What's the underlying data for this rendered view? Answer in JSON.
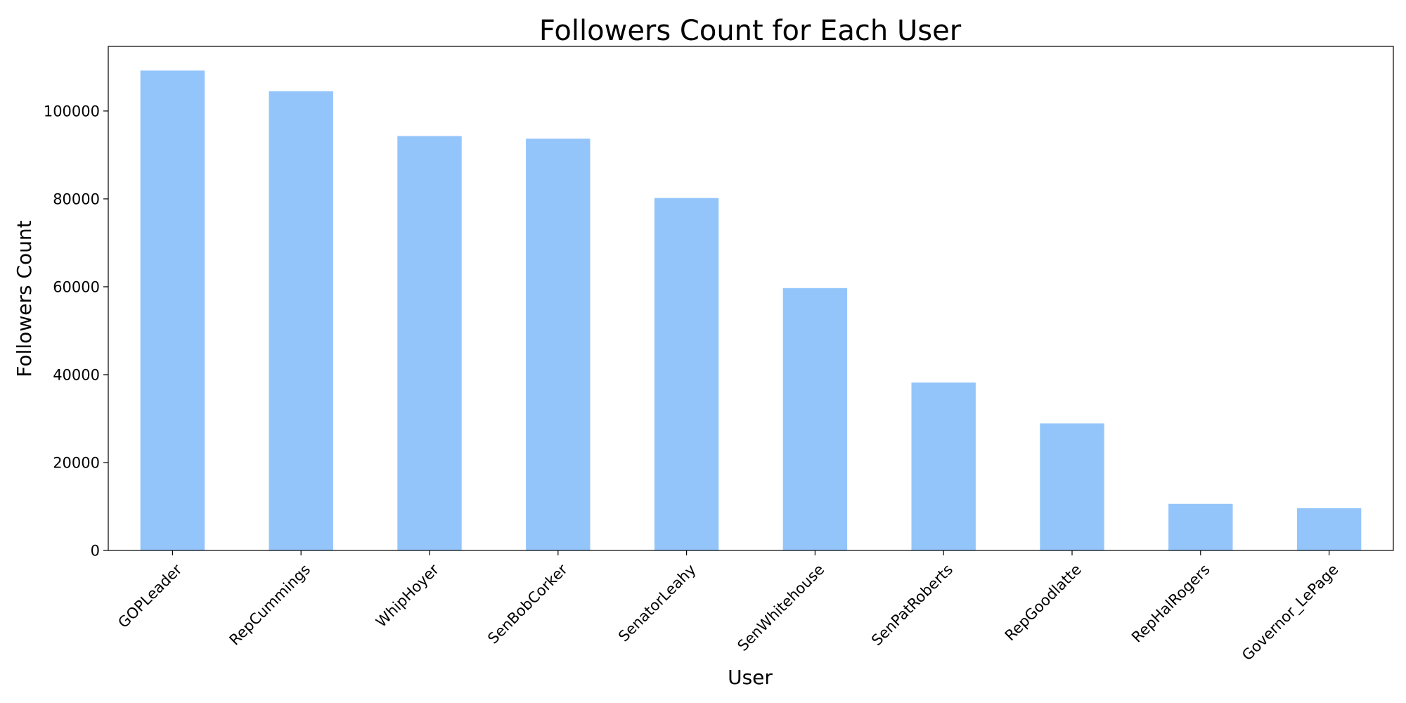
{
  "chart_data": {
    "type": "bar",
    "title": "Followers Count for Each User",
    "xlabel": "User",
    "ylabel": "Followers Count",
    "categories": [
      "GOPLeader",
      "RepCummings",
      "WhipHoyer",
      "SenBobCorker",
      "SenatorLeahy",
      "SenWhitehouse",
      "SenPatRoberts",
      "RepGoodlatte",
      "RepHalRogers",
      "Governor_LePage"
    ],
    "values": [
      109200,
      104500,
      94300,
      93700,
      80200,
      59700,
      38200,
      28900,
      10600,
      9600
    ],
    "ylim": [
      0,
      114700
    ],
    "yticks": [
      0,
      20000,
      40000,
      60000,
      80000,
      100000
    ],
    "bar_color": "#93c5fb",
    "grid": false,
    "legend": "none"
  }
}
